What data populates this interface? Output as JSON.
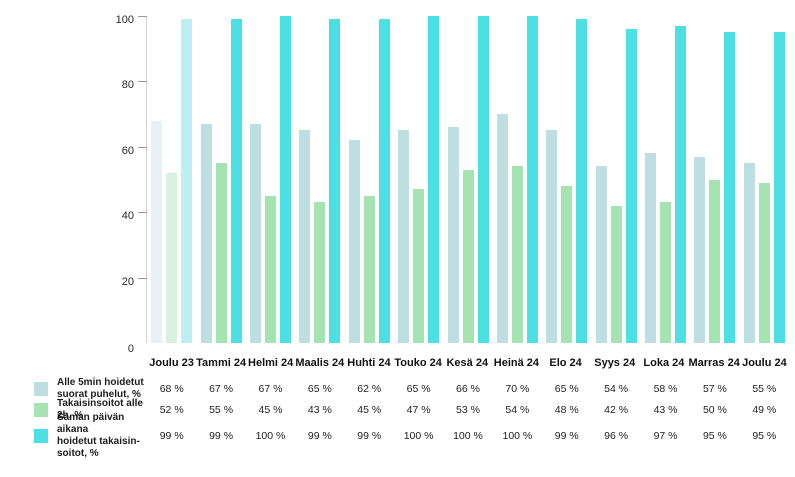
{
  "chart_data": {
    "type": "bar",
    "title": "",
    "xlabel": "",
    "ylabel": "",
    "ylim": [
      0,
      100
    ],
    "yticks": [
      0,
      20,
      40,
      60,
      80,
      100
    ],
    "grid": false,
    "legend_position": "bottom-left-table",
    "faded_category_index": 0,
    "categories": [
      "Joulu 23",
      "Tammi 24",
      "Helmi 24",
      "Maalis 24",
      "Huhti 24",
      "Touko 24",
      "Kesä 24",
      "Heinä 24",
      "Elo 24",
      "Syys 24",
      "Loka 24",
      "Marras 24",
      "Joulu 24"
    ],
    "series": [
      {
        "name": "Alle 5min hoidetut suorat puhelut, %",
        "color": "#bedfe1",
        "faded_color": "#e5f1f3",
        "values": [
          68,
          67,
          67,
          65,
          62,
          65,
          66,
          70,
          65,
          54,
          58,
          57,
          55
        ]
      },
      {
        "name": "Takaisinsoitot alle 2h, %",
        "color": "#a6e3b3",
        "faded_color": "#d9f1e0",
        "values": [
          52,
          55,
          45,
          43,
          45,
          47,
          53,
          54,
          48,
          42,
          43,
          50,
          49
        ]
      },
      {
        "name": "Saman päivän aikana hoidetut takaisinsoitot, %",
        "color": "#4cdfe4",
        "faded_color": "#bdeef1",
        "values": [
          99,
          99,
          100,
          99,
          99,
          100,
          100,
          100,
          99,
          96,
          97,
          95,
          95
        ]
      }
    ]
  },
  "table": {
    "rows": [
      {
        "label_lines": "Alle 5min hoidetut\nsuorat puhelut, %",
        "swatch_color": "#bedfe1",
        "values": [
          "68 %",
          "67 %",
          "67 %",
          "65 %",
          "62 %",
          "65 %",
          "66 %",
          "70 %",
          "65 %",
          "54 %",
          "58 %",
          "57 %",
          "55 %"
        ]
      },
      {
        "label_lines": "Takaisinsoitot alle 2h, %",
        "swatch_color": "#a6e3b3",
        "values": [
          "52 %",
          "55 %",
          "45 %",
          "43 %",
          "45 %",
          "47 %",
          "53 %",
          "54 %",
          "48 %",
          "42 %",
          "43 %",
          "50 %",
          "49 %"
        ]
      },
      {
        "label_lines": "Saman päivän aikana\nhoidetut takaisin-\nsoitot, %",
        "swatch_color": "#4cdfe4",
        "values": [
          "99 %",
          "99 %",
          "100 %",
          "99 %",
          "99 %",
          "100 %",
          "100 %",
          "100 %",
          "99 %",
          "96 %",
          "97 %",
          "95 %",
          "95 %"
        ]
      }
    ]
  }
}
